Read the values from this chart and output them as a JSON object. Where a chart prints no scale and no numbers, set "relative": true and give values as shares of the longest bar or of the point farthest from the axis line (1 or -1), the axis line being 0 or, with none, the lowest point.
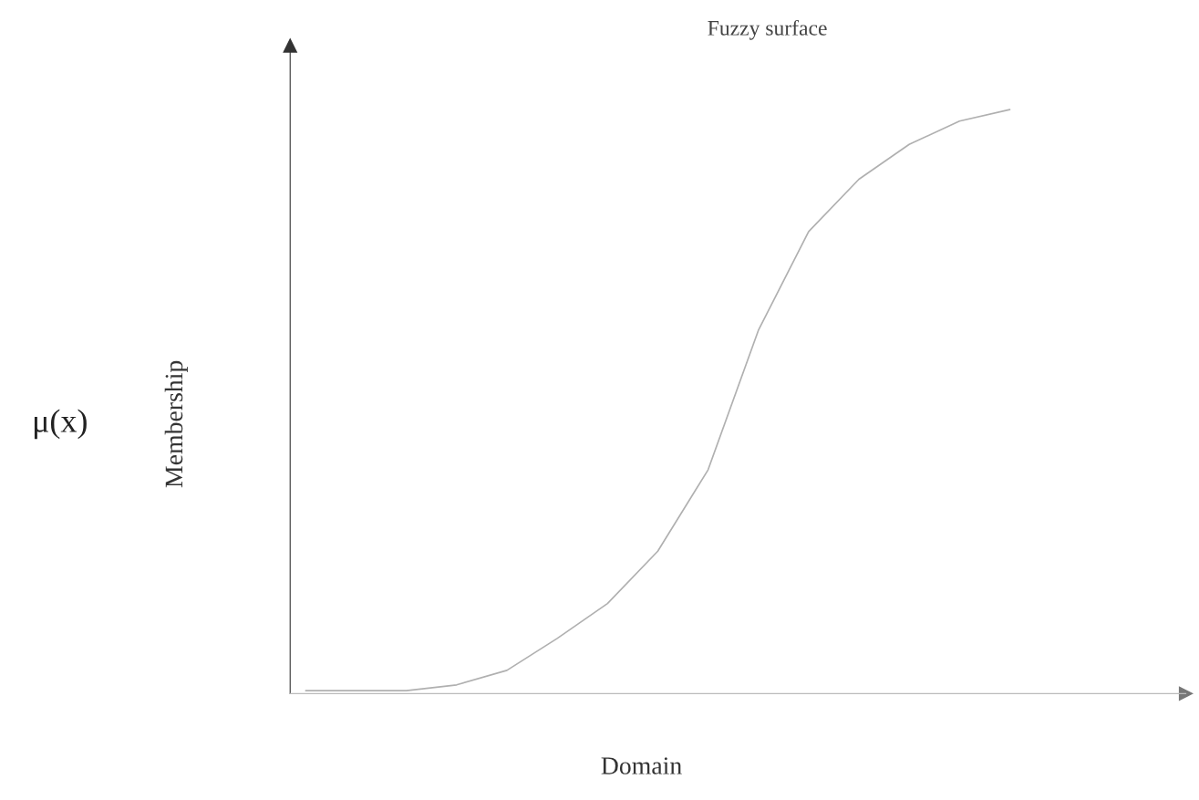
{
  "chart_data": {
    "type": "line",
    "title": "Fuzzy surface",
    "xlabel": "Domain",
    "ylabel": "Membership",
    "annotations": [
      "μ(x)"
    ],
    "relative": true,
    "categories": [
      null,
      null,
      null,
      null,
      null,
      null,
      null,
      null,
      null,
      null,
      null,
      null,
      null,
      null,
      null
    ],
    "series": [
      {
        "color": "#b0b0b0",
        "values": [
          0,
          0,
          0,
          0.01,
          0.035,
          0.09,
          0.15,
          0.24,
          0.38,
          0.62,
          0.79,
          0.88,
          0.94,
          0.98,
          1
        ]
      }
    ],
    "grid": false,
    "marker": "none",
    "line_style": "solid"
  }
}
